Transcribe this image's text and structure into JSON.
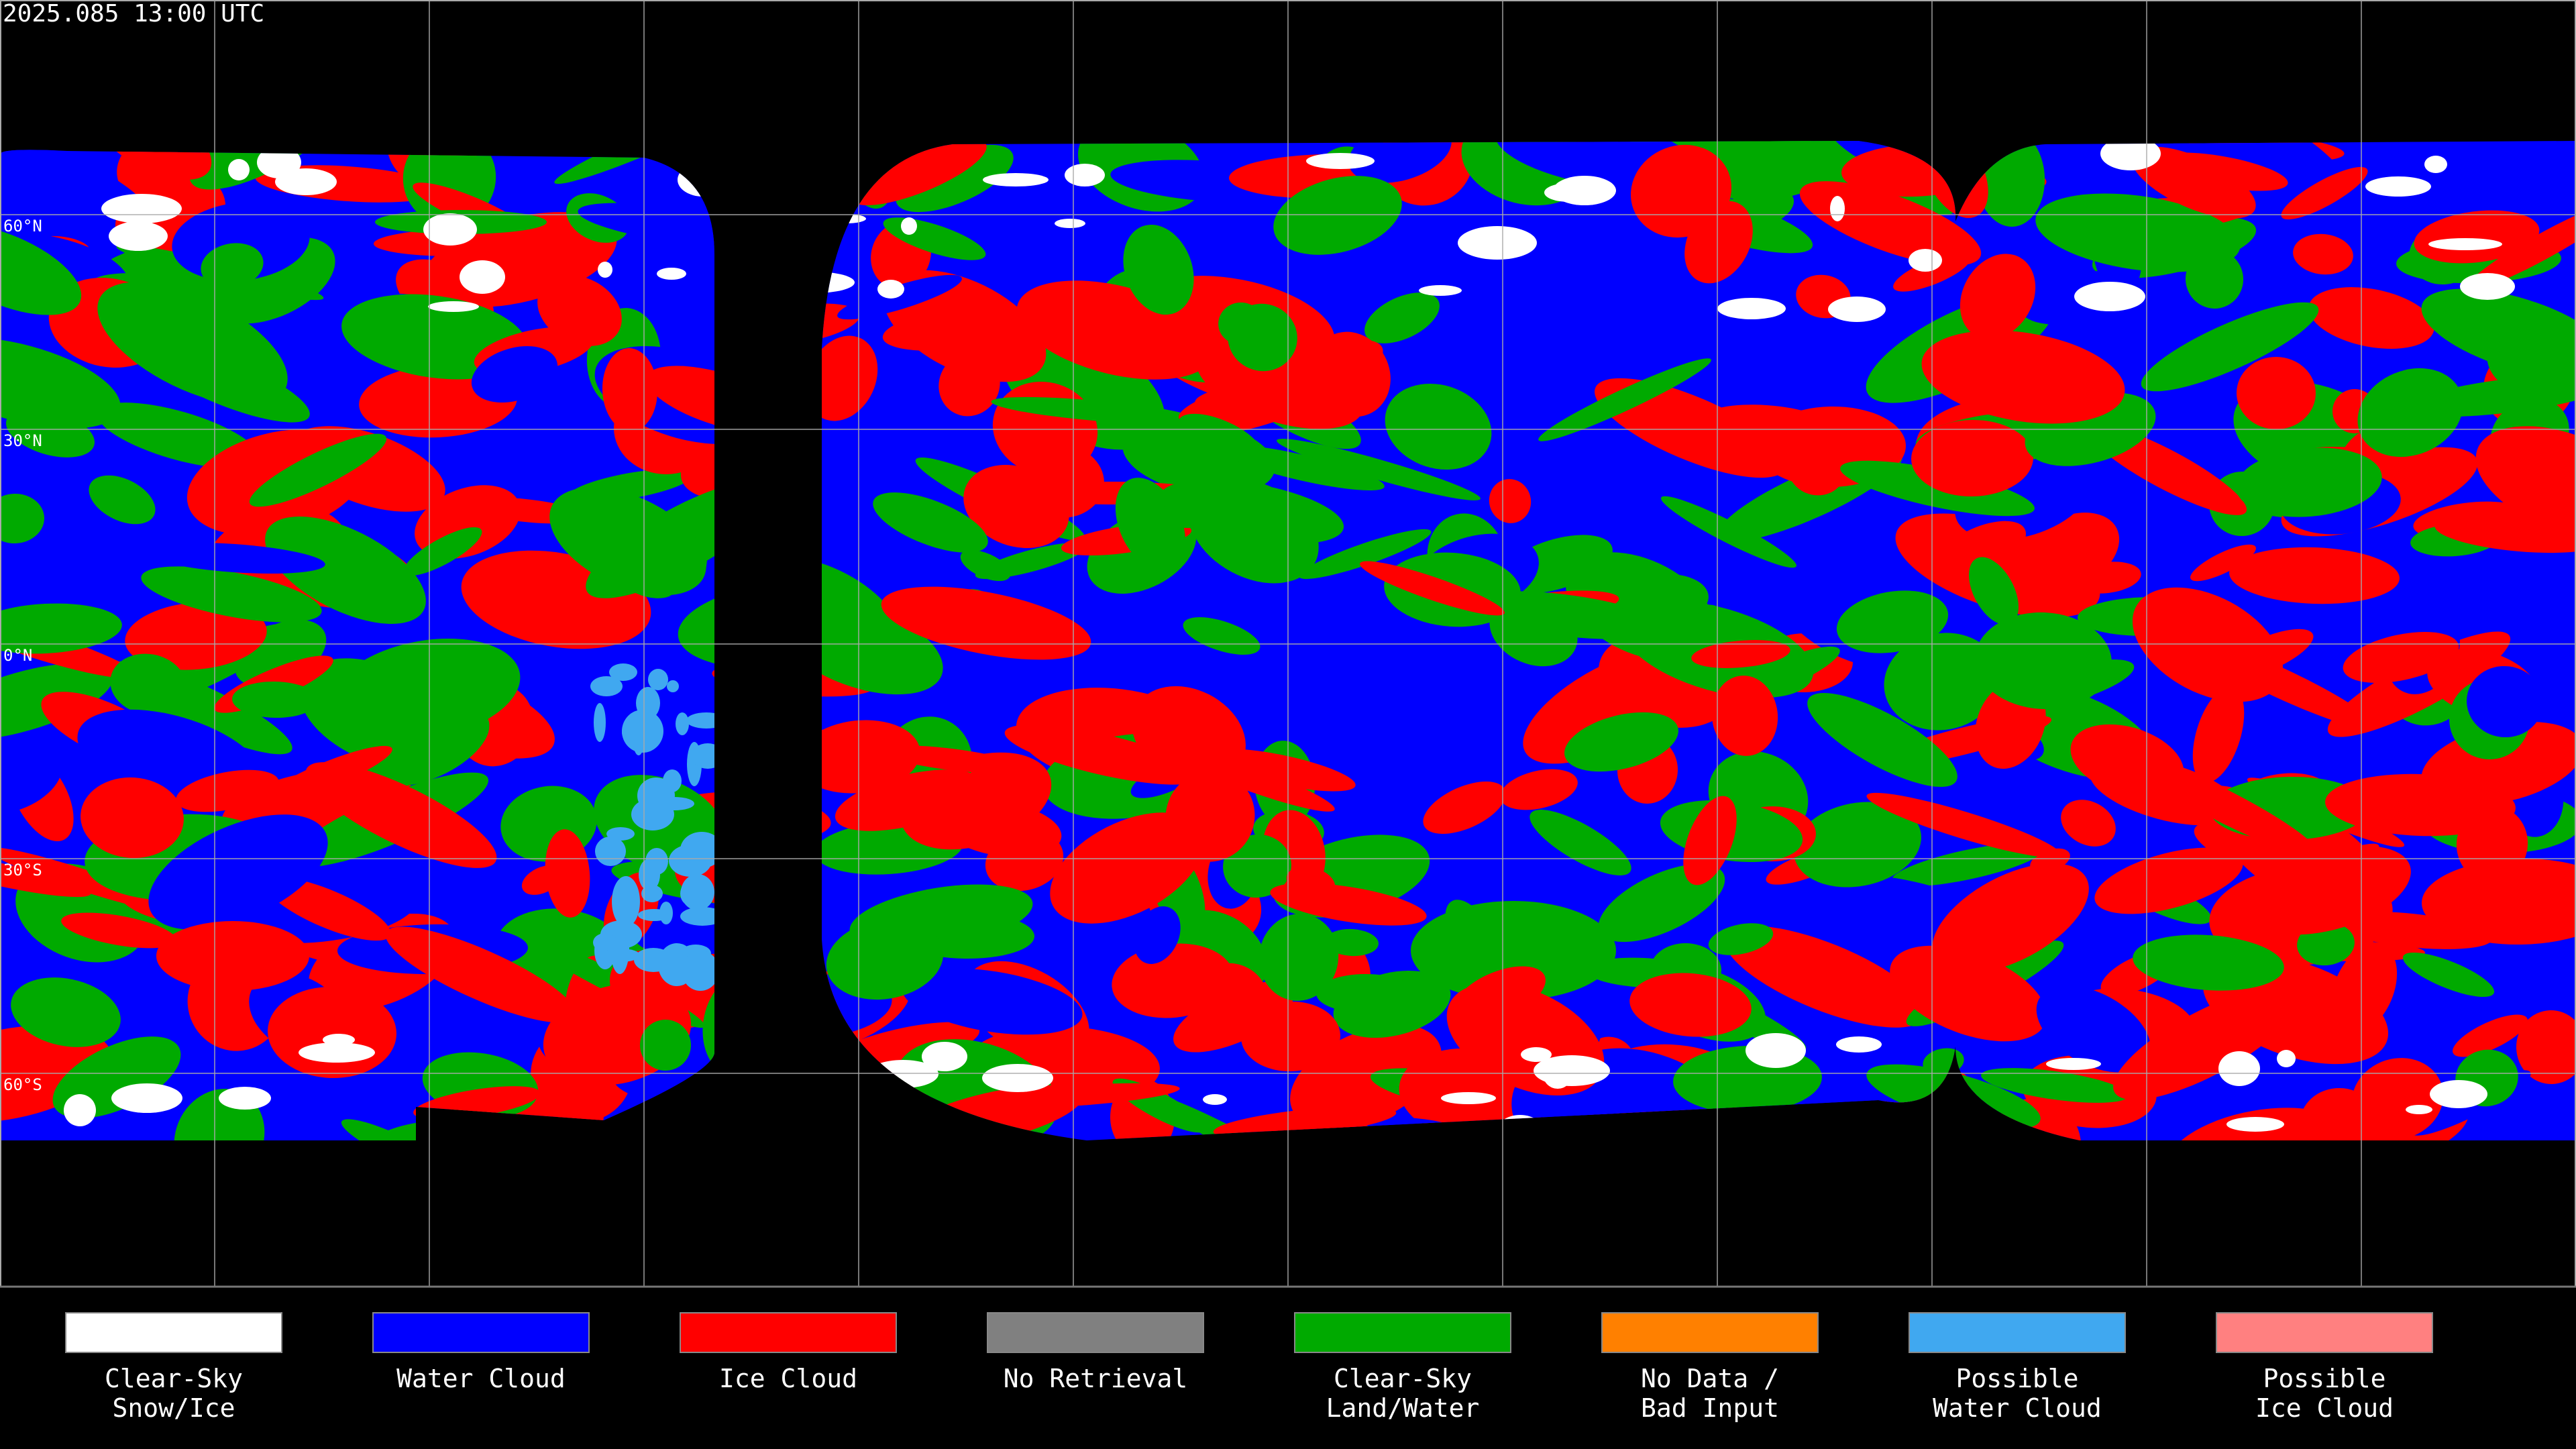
{
  "header": {
    "timestamp": "2025.085 13:00 UTC"
  },
  "lat_labels": [
    "60°N",
    "30°N",
    "0°N",
    "30°S",
    "60°S"
  ],
  "legend": {
    "items": [
      {
        "label": [
          "Clear-Sky",
          "Snow/Ice"
        ],
        "color": "#ffffff"
      },
      {
        "label": [
          "Water Cloud"
        ],
        "color": "#0000ff"
      },
      {
        "label": [
          "Ice Cloud"
        ],
        "color": "#ff0000"
      },
      {
        "label": [
          "No Retrieval"
        ],
        "color": "#808080"
      },
      {
        "label": [
          "Clear-Sky",
          "Land/Water"
        ],
        "color": "#00aa00"
      },
      {
        "label": [
          "No Data /",
          "Bad Input"
        ],
        "color": "#ff8000"
      },
      {
        "label": [
          "Possible",
          "Water Cloud"
        ],
        "color": "#40a8f0"
      },
      {
        "label": [
          "Possible",
          "Ice Cloud"
        ],
        "color": "#ff8080"
      }
    ]
  }
}
